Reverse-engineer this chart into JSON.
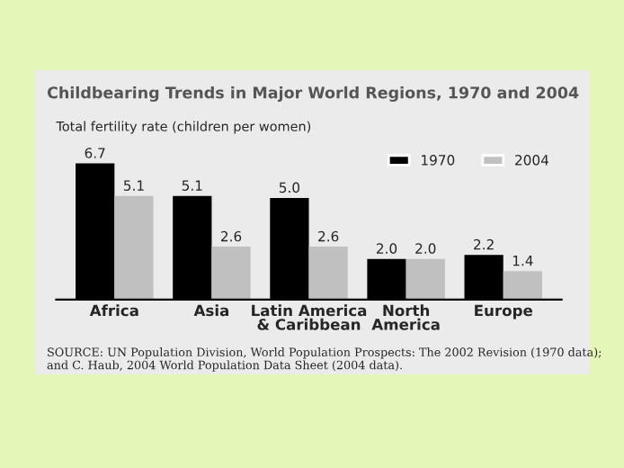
{
  "chart_data": {
    "type": "bar",
    "title": "Childbearing Trends in Major World Regions, 1970 and 2004",
    "ylabel": "Total fertility rate (children per women)",
    "categories": [
      "Africa",
      "Asia",
      "Latin America\n& Caribbean",
      "North\nAmerica",
      "Europe"
    ],
    "series": [
      {
        "name": "1970",
        "color": "#000000",
        "values": [
          6.7,
          5.1,
          5.0,
          2.0,
          2.2
        ],
        "value_labels": [
          "6.7",
          "5.1",
          "5.0",
          "2.0",
          "2.2"
        ]
      },
      {
        "name": "2004",
        "color": "#c0c0c0",
        "values": [
          5.1,
          2.6,
          2.6,
          2.0,
          1.4
        ],
        "value_labels": [
          "5.1",
          "2.6",
          "2.6",
          "2.0",
          "1.4"
        ]
      }
    ],
    "legend": "top right",
    "grid": false,
    "annotations": [
      "SOURCE: UN Population Division, World Population Prospects: The 2002 Revision (1970 data); and C. Haub, 2004 World Population Data Sheet (2004 data)."
    ]
  }
}
